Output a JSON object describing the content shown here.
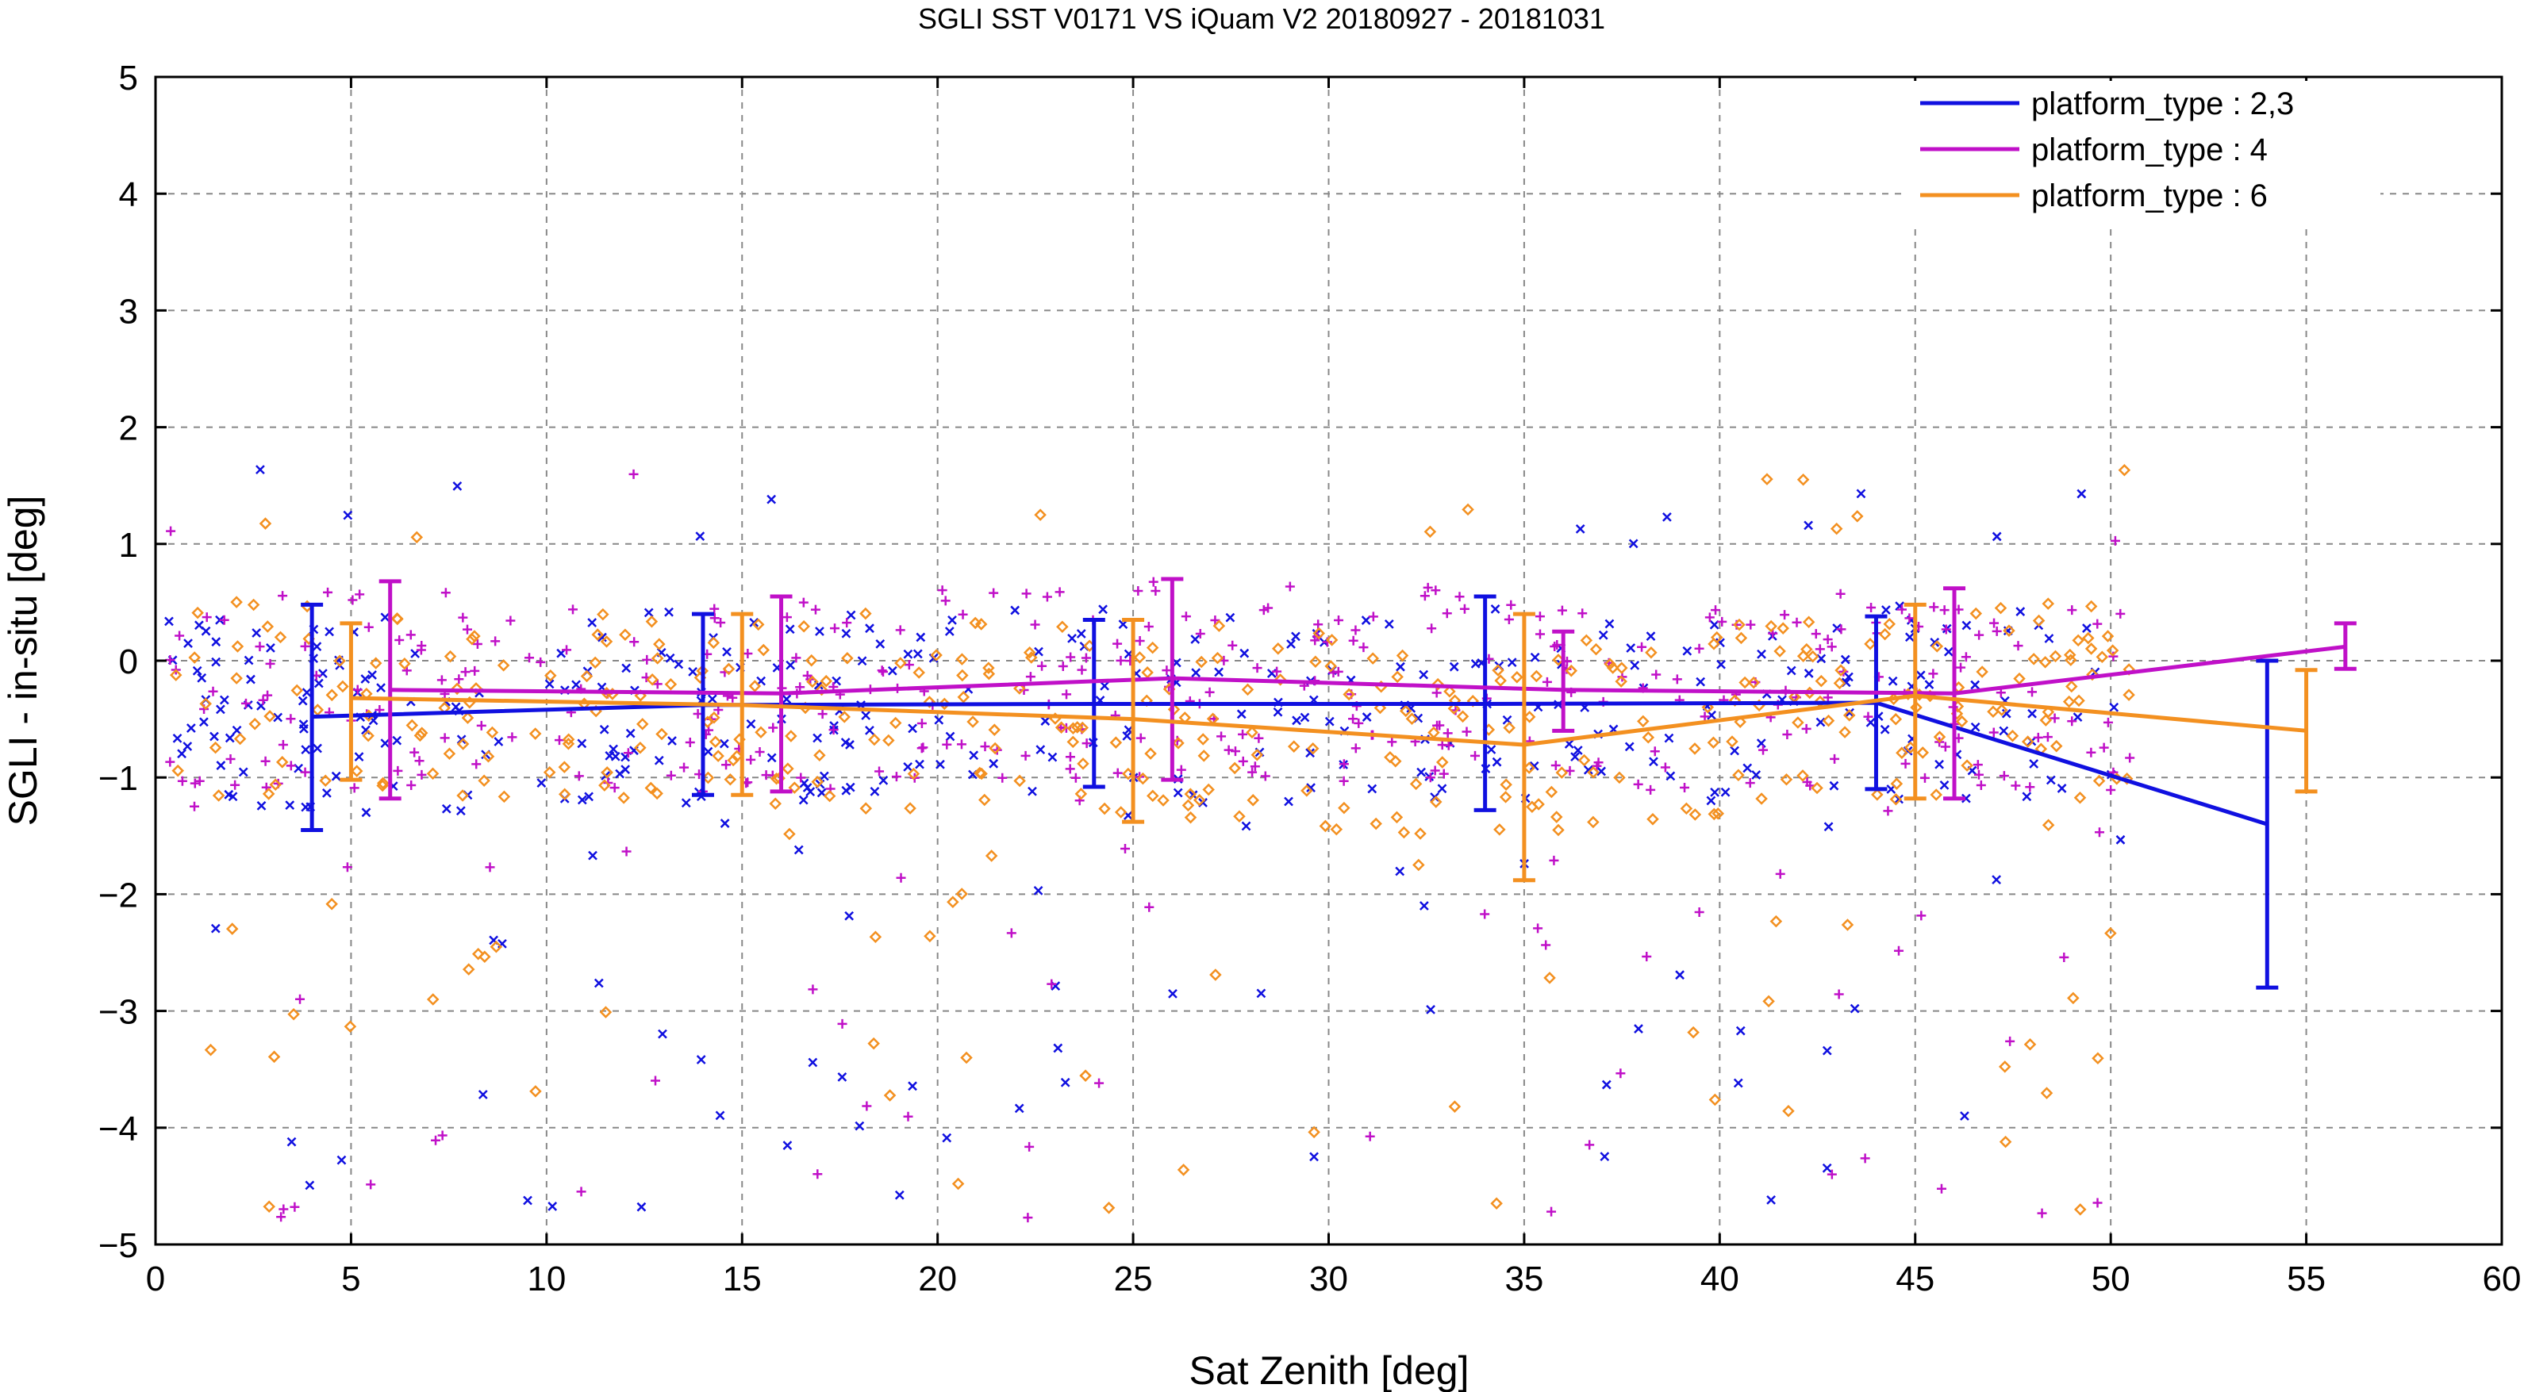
{
  "chart_data": {
    "type": "line",
    "title": "SGLI SST V0171 VS iQuam V2 20180927 - 20181031",
    "xlabel": "Sat Zenith [deg]",
    "ylabel": "SGLI - in-situ [deg]",
    "xlim": [
      0,
      60
    ],
    "ylim": [
      -5,
      5
    ],
    "xticks": [
      0,
      5,
      10,
      15,
      20,
      25,
      30,
      35,
      40,
      45,
      50,
      55,
      60
    ],
    "yticks": [
      -5,
      -4,
      -3,
      -2,
      -1,
      0,
      1,
      2,
      3,
      4,
      5
    ],
    "xtick_labels": [
      "0",
      "5",
      "10",
      "15",
      "20",
      "25",
      "30",
      "35",
      "40",
      "45",
      "50",
      "55",
      "60"
    ],
    "ytick_labels": [
      "−5",
      "−4",
      "−3",
      "−2",
      "−1",
      "0",
      "1",
      "2",
      "3",
      "4",
      "5"
    ],
    "grid": true,
    "legend_position": "top-right",
    "series": [
      {
        "name": "platform_type : 2,3",
        "color": "#1010e0",
        "marker": "x",
        "x": [
          4,
          14,
          24,
          34,
          44,
          54
        ],
        "y": [
          -0.48,
          -0.38,
          -0.37,
          -0.37,
          -0.36,
          -1.4
        ],
        "err_low": [
          -1.45,
          -1.15,
          -1.08,
          -1.28,
          -1.1,
          -2.8
        ],
        "err_high": [
          0.48,
          0.4,
          0.35,
          0.55,
          0.38,
          0.0
        ]
      },
      {
        "name": "platform_type : 4",
        "color": "#c010c8",
        "marker": "+",
        "x": [
          6,
          16,
          26,
          36,
          46,
          56
        ],
        "y": [
          -0.25,
          -0.28,
          -0.15,
          -0.25,
          -0.28,
          0.12
        ],
        "err_low": [
          -1.18,
          -1.12,
          -1.02,
          -0.6,
          -1.18,
          -0.07
        ],
        "err_high": [
          0.68,
          0.55,
          0.7,
          0.25,
          0.62,
          0.32
        ]
      },
      {
        "name": "platform_type : 6",
        "color": "#f39020",
        "marker": "diamond",
        "x": [
          5,
          15,
          25,
          35,
          45,
          55
        ],
        "y": [
          -0.32,
          -0.38,
          -0.5,
          -0.72,
          -0.3,
          -0.6
        ],
        "err_low": [
          -1.02,
          -1.15,
          -1.38,
          -1.88,
          -1.18,
          -1.12
        ],
        "err_high": [
          0.32,
          0.4,
          0.35,
          0.4,
          0.48,
          -0.08
        ]
      }
    ]
  }
}
